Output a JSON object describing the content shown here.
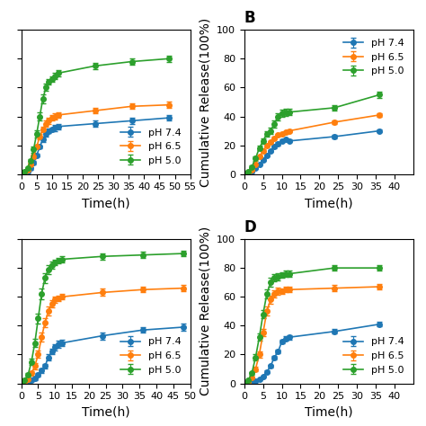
{
  "chart_data": [
    {
      "type": "line",
      "xlabel": "Time(h)",
      "tick_labels": "x",
      "legend": "lower right",
      "marker": "o",
      "xlim": [
        0,
        55
      ],
      "ylim": [
        0,
        10
      ],
      "xticks": [
        0,
        5,
        10,
        15,
        20,
        25,
        30,
        35,
        40,
        45,
        50,
        55
      ],
      "yticks": [
        0,
        2,
        4,
        6,
        8,
        10
      ],
      "x": [
        0,
        1,
        2,
        3,
        4,
        5,
        6,
        7,
        8,
        9,
        10,
        11,
        12,
        24,
        36,
        48
      ],
      "series": [
        {
          "name": "pH 7.4",
          "values": [
            0,
            0.05,
            0.15,
            0.4,
            0.8,
            1.3,
            1.9,
            2.4,
            2.8,
            3.0,
            3.1,
            3.2,
            3.3,
            3.5,
            3.7,
            3.9
          ],
          "yerr": [
            0,
            0,
            0,
            0.1,
            0.1,
            0.1,
            0.1,
            0.2,
            0.2,
            0.15,
            0.15,
            0.2,
            0.2,
            0.2,
            0.2,
            0.2
          ]
        },
        {
          "name": "pH 6.5",
          "values": [
            0,
            0.1,
            0.3,
            0.7,
            1.2,
            1.9,
            2.6,
            3.1,
            3.5,
            3.7,
            3.9,
            4.0,
            4.1,
            4.4,
            4.7,
            4.8
          ],
          "yerr": [
            0,
            0,
            0.05,
            0.1,
            0.15,
            0.15,
            0.2,
            0.2,
            0.2,
            0.2,
            0.2,
            0.2,
            0.2,
            0.2,
            0.2,
            0.2
          ]
        },
        {
          "name": "pH 5.0",
          "values": [
            0,
            0.15,
            0.4,
            0.9,
            1.7,
            2.8,
            4.0,
            5.2,
            6.0,
            6.4,
            6.6,
            6.8,
            7.0,
            7.5,
            7.8,
            8.0
          ],
          "yerr": [
            0,
            0.05,
            0.1,
            0.15,
            0.2,
            0.25,
            0.3,
            0.3,
            0.25,
            0.2,
            0.2,
            0.2,
            0.2,
            0.2,
            0.2,
            0.2
          ]
        }
      ]
    },
    {
      "type": "line",
      "title": "B",
      "xlabel": "Time(h)",
      "ylabel": "Cumulative Release(100%)",
      "legend": "upper right",
      "marker": "o",
      "xlim": [
        0,
        45
      ],
      "ylim": [
        0,
        100
      ],
      "xticks": [
        0,
        5,
        10,
        15,
        20,
        25,
        30,
        35,
        40
      ],
      "yticks": [
        0,
        20,
        40,
        60,
        80,
        100
      ],
      "x": [
        0,
        1,
        2,
        3,
        4,
        5,
        6,
        7,
        8,
        9,
        10,
        11,
        12,
        24,
        36
      ],
      "series": [
        {
          "name": "pH 7.4",
          "values": [
            0,
            1,
            2,
            4,
            7,
            10,
            13,
            16,
            19,
            21,
            23,
            24,
            23,
            26,
            30
          ],
          "yerr": [
            0,
            0.3,
            0.5,
            0.5,
            0.5,
            0.5,
            0.5,
            0.8,
            1,
            1,
            1,
            1,
            1,
            1,
            1
          ]
        },
        {
          "name": "pH 6.5",
          "values": [
            0,
            1,
            3,
            7,
            12,
            16,
            20,
            22,
            25,
            27,
            28,
            29,
            30,
            36,
            41
          ],
          "yerr": [
            0,
            0.3,
            0.5,
            0.8,
            1,
            1,
            1,
            1,
            1,
            1,
            1,
            1,
            1,
            1.5,
            1.5
          ]
        },
        {
          "name": "pH 5.0",
          "values": [
            0,
            2,
            5,
            11,
            18,
            23,
            28,
            30,
            35,
            40,
            42,
            43,
            43,
            46,
            55
          ],
          "yerr": [
            0,
            0.5,
            1,
            1.5,
            1.5,
            2,
            2,
            2,
            2.5,
            2.5,
            2.5,
            2.5,
            2,
            2,
            2
          ]
        }
      ]
    },
    {
      "type": "line",
      "xlabel": "Time(h)",
      "tick_labels": "x",
      "legend": "lower right",
      "marker": "o",
      "xlim": [
        0,
        50
      ],
      "ylim": [
        0,
        10
      ],
      "xticks": [
        0,
        5,
        10,
        15,
        20,
        25,
        30,
        35,
        40,
        45,
        50
      ],
      "yticks": [
        0,
        2,
        4,
        6,
        8,
        10
      ],
      "x": [
        0,
        1,
        2,
        3,
        4,
        5,
        6,
        7,
        8,
        9,
        10,
        11,
        12,
        24,
        36,
        48
      ],
      "series": [
        {
          "name": "pH 7.4",
          "values": [
            0,
            0.05,
            0.1,
            0.2,
            0.35,
            0.6,
            0.9,
            1.2,
            1.8,
            2.2,
            2.5,
            2.7,
            2.8,
            3.3,
            3.7,
            3.9
          ],
          "yerr": [
            0,
            0,
            0,
            0.05,
            0.1,
            0.1,
            0.15,
            0.15,
            0.2,
            0.2,
            0.2,
            0.25,
            0.2,
            0.25,
            0.2,
            0.25
          ]
        },
        {
          "name": "pH 6.5",
          "values": [
            0,
            0.1,
            0.3,
            0.7,
            1.2,
            2.0,
            3.2,
            4.2,
            5.0,
            5.5,
            5.8,
            5.9,
            6.0,
            6.3,
            6.5,
            6.6
          ],
          "yerr": [
            0,
            0.05,
            0.1,
            0.15,
            0.2,
            0.25,
            0.3,
            0.3,
            0.3,
            0.25,
            0.2,
            0.2,
            0.2,
            0.25,
            0.2,
            0.2
          ]
        },
        {
          "name": "pH 5.0",
          "values": [
            0,
            0.2,
            0.6,
            1.5,
            2.8,
            4.5,
            6.2,
            7.3,
            7.9,
            8.2,
            8.4,
            8.5,
            8.6,
            8.8,
            8.9,
            9.0
          ],
          "yerr": [
            0,
            0.05,
            0.1,
            0.2,
            0.3,
            0.35,
            0.4,
            0.35,
            0.3,
            0.25,
            0.2,
            0.2,
            0.2,
            0.2,
            0.2,
            0.2
          ]
        }
      ]
    },
    {
      "type": "line",
      "title": "D",
      "xlabel": "Time(h)",
      "ylabel": "Cumulative Release(100%)",
      "legend": "lower right",
      "marker": "o",
      "xlim": [
        0,
        45
      ],
      "ylim": [
        0,
        100
      ],
      "xticks": [
        0,
        5,
        10,
        15,
        20,
        25,
        30,
        35,
        40
      ],
      "yticks": [
        0,
        20,
        40,
        60,
        80,
        100
      ],
      "x": [
        0,
        1,
        2,
        3,
        4,
        5,
        6,
        7,
        8,
        9,
        10,
        11,
        12,
        24,
        36
      ],
      "series": [
        {
          "name": "pH 7.4",
          "values": [
            0,
            0.3,
            0.8,
            1.5,
            3,
            5,
            8,
            12,
            18,
            22,
            29,
            31,
            32,
            36,
            41
          ],
          "yerr": [
            0,
            0.2,
            0.3,
            0.5,
            0.5,
            0.5,
            0.8,
            1,
            1.2,
            1.2,
            1.5,
            1.5,
            1.5,
            1.5,
            1.5
          ]
        },
        {
          "name": "pH 6.5",
          "values": [
            0,
            1,
            4,
            10,
            20,
            35,
            50,
            58,
            62,
            64,
            64,
            65,
            65,
            66,
            67
          ],
          "yerr": [
            0,
            0.5,
            1,
            1.5,
            2,
            2.5,
            3,
            3,
            2.5,
            2.5,
            2,
            2,
            2,
            2,
            2
          ]
        },
        {
          "name": "pH 5.0",
          "values": [
            0,
            2,
            7,
            18,
            32,
            48,
            62,
            70,
            73,
            74,
            75,
            76,
            76,
            80,
            80
          ],
          "yerr": [
            0,
            0.5,
            1,
            2,
            2.5,
            3,
            3,
            3,
            2.5,
            2.5,
            2,
            2,
            2,
            2,
            2
          ]
        }
      ]
    }
  ]
}
